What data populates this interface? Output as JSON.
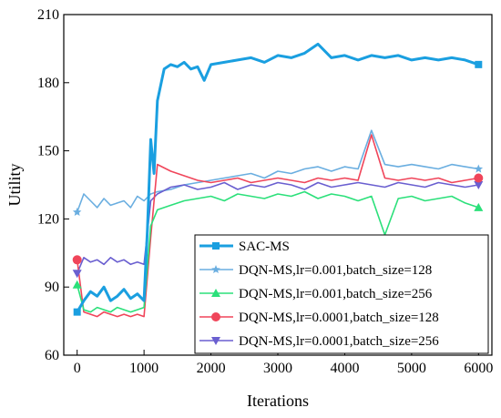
{
  "chart_data": {
    "type": "line",
    "title": "",
    "xlabel": "Iterations",
    "ylabel": "Utility",
    "xlim": [
      -200,
      6200
    ],
    "ylim": [
      60,
      210
    ],
    "xticks": [
      0,
      1000,
      2000,
      3000,
      4000,
      5000,
      6000
    ],
    "yticks": [
      60,
      90,
      120,
      150,
      180,
      210
    ],
    "grid": false,
    "legend_position": "bottom-right",
    "series": [
      {
        "name": "SAC-MS",
        "color": "#1a9fe0",
        "marker": "square",
        "x": [
          0,
          100,
          200,
          300,
          400,
          500,
          600,
          700,
          800,
          900,
          1000,
          1050,
          1100,
          1150,
          1200,
          1300,
          1400,
          1500,
          1600,
          1700,
          1800,
          1900,
          2000,
          2200,
          2400,
          2600,
          2800,
          3000,
          3200,
          3400,
          3600,
          3800,
          4000,
          4200,
          4400,
          4600,
          4800,
          5000,
          5200,
          5400,
          5600,
          5800,
          6000
        ],
        "values": [
          79,
          84,
          88,
          86,
          90,
          84,
          86,
          89,
          85,
          87,
          84,
          115,
          155,
          140,
          172,
          186,
          188,
          187,
          189,
          186,
          187,
          181,
          188,
          189,
          190,
          191,
          189,
          192,
          191,
          193,
          197,
          191,
          192,
          190,
          192,
          191,
          192,
          190,
          191,
          190,
          191,
          190,
          188
        ]
      },
      {
        "name": "DQN-MS,lr=0.001,batch_size=128",
        "color": "#6aaee0",
        "marker": "star",
        "x": [
          0,
          100,
          200,
          300,
          400,
          500,
          600,
          700,
          800,
          900,
          1000,
          1100,
          1200,
          1400,
          1600,
          1800,
          2000,
          2200,
          2400,
          2600,
          2800,
          3000,
          3200,
          3400,
          3600,
          3800,
          4000,
          4200,
          4400,
          4600,
          4800,
          5000,
          5200,
          5400,
          5600,
          5800,
          6000
        ],
        "values": [
          123,
          131,
          128,
          125,
          129,
          126,
          127,
          128,
          125,
          130,
          128,
          131,
          132,
          133,
          135,
          136,
          137,
          138,
          139,
          140,
          138,
          141,
          140,
          142,
          143,
          141,
          143,
          142,
          159,
          144,
          143,
          144,
          143,
          142,
          144,
          143,
          142
        ]
      },
      {
        "name": "DQN-MS,lr=0.001,batch_size=256",
        "color": "#2be07a",
        "marker": "triangle-up",
        "x": [
          0,
          100,
          200,
          300,
          400,
          500,
          600,
          700,
          800,
          900,
          1000,
          1100,
          1200,
          1400,
          1600,
          1800,
          2000,
          2200,
          2400,
          2600,
          2800,
          3000,
          3200,
          3400,
          3600,
          3800,
          4000,
          4200,
          4400,
          4600,
          4800,
          5000,
          5200,
          5400,
          5600,
          5800,
          6000
        ],
        "values": [
          91,
          80,
          79,
          81,
          80,
          79,
          81,
          80,
          79,
          80,
          81,
          117,
          124,
          126,
          128,
          129,
          130,
          128,
          131,
          130,
          129,
          131,
          130,
          132,
          129,
          131,
          130,
          128,
          130,
          113,
          129,
          130,
          128,
          129,
          130,
          127,
          125
        ]
      },
      {
        "name": "DQN-MS,lr=0.0001,batch_size=128",
        "color": "#f0455a",
        "marker": "circle",
        "x": [
          0,
          100,
          200,
          300,
          400,
          500,
          600,
          700,
          800,
          900,
          1000,
          1100,
          1200,
          1400,
          1600,
          1800,
          2000,
          2200,
          2400,
          2600,
          2800,
          3000,
          3200,
          3400,
          3600,
          3800,
          4000,
          4200,
          4400,
          4600,
          4800,
          5000,
          5200,
          5400,
          5600,
          5800,
          6000
        ],
        "values": [
          102,
          79,
          78,
          77,
          79,
          78,
          77,
          78,
          77,
          78,
          77,
          112,
          144,
          141,
          139,
          137,
          136,
          137,
          138,
          136,
          137,
          138,
          137,
          136,
          138,
          137,
          138,
          137,
          157,
          138,
          137,
          138,
          137,
          138,
          136,
          137,
          138
        ]
      },
      {
        "name": "DQN-MS,lr=0.0001,batch_size=256",
        "color": "#6a5fd0",
        "marker": "triangle-down",
        "x": [
          0,
          100,
          200,
          300,
          400,
          500,
          600,
          700,
          800,
          900,
          1000,
          1100,
          1200,
          1400,
          1600,
          1800,
          2000,
          2200,
          2400,
          2600,
          2800,
          3000,
          3200,
          3400,
          3600,
          3800,
          4000,
          4200,
          4400,
          4600,
          4800,
          5000,
          5200,
          5400,
          5600,
          5800,
          6000
        ],
        "values": [
          96,
          103,
          101,
          102,
          100,
          103,
          101,
          102,
          100,
          101,
          100,
          128,
          131,
          134,
          135,
          133,
          134,
          136,
          133,
          135,
          134,
          136,
          135,
          133,
          136,
          134,
          135,
          136,
          135,
          134,
          136,
          135,
          134,
          136,
          135,
          134,
          135
        ]
      }
    ]
  }
}
